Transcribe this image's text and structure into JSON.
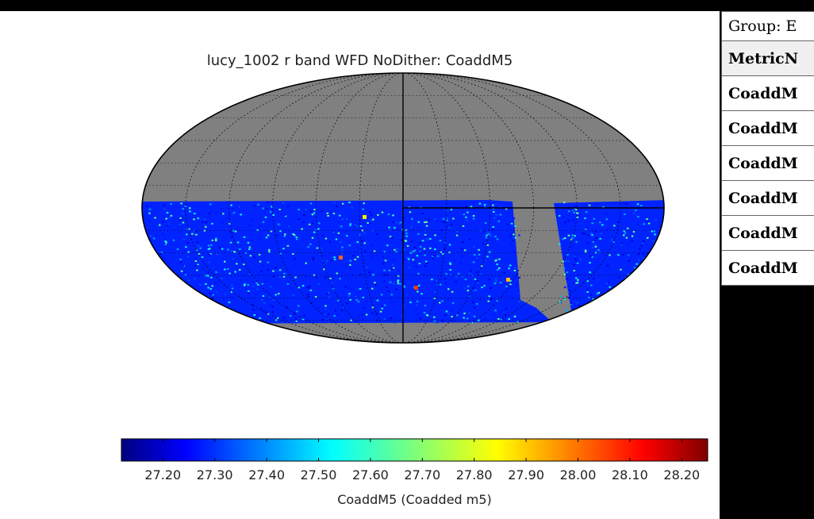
{
  "chart_data": {
    "type": "heatmap",
    "projection": "mollweide",
    "title": "lucy_1002 r band WFD NoDither: CoaddM5",
    "colorbar": {
      "label": "CoaddM5 (Coadded m5)",
      "range": [
        27.12,
        28.25
      ],
      "colormap": "jet",
      "ticks": [
        "27.20",
        "27.30",
        "27.40",
        "27.50",
        "27.60",
        "27.70",
        "27.80",
        "27.90",
        "28.00",
        "28.10",
        "28.20"
      ],
      "tick_values": [
        27.2,
        27.3,
        27.4,
        27.5,
        27.6,
        27.7,
        27.8,
        27.9,
        28.0,
        28.1,
        28.2
      ]
    },
    "background_color": "#808080",
    "grid": true,
    "typical_value": 27.3
  },
  "table": {
    "group_label": "Group: E",
    "header": "MetricN",
    "rows": [
      "CoaddM",
      "CoaddM",
      "CoaddM",
      "CoaddM",
      "CoaddM",
      "CoaddM"
    ]
  }
}
